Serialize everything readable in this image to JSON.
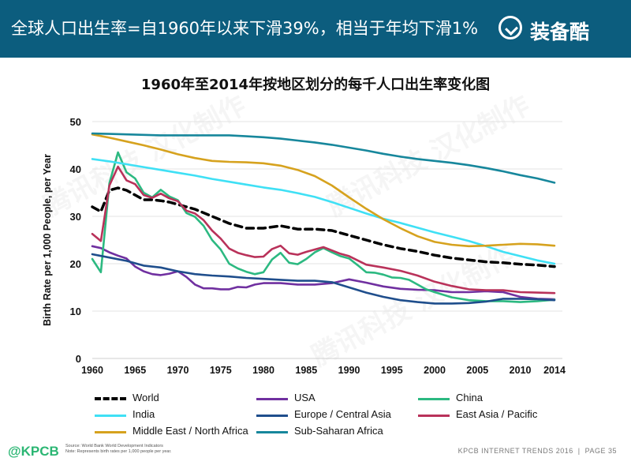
{
  "header": {
    "title": "全球人口出生率=自1960年以来下滑39%，相当于年均下滑1%",
    "brand": "装备酷"
  },
  "watermarks": [
    "腾讯科技 汉化制作",
    "腾讯科技 汉化制作",
    "腾讯科技 汉化制作"
  ],
  "footer": {
    "logo": "@KPCB",
    "source_line1": "Source: World Bank World Development Indicators",
    "source_line2": "Note: Represents birth rates per 1,000 people per year.",
    "report": "KPCB INTERNET TRENDS 2016",
    "separator": "|",
    "page": "PAGE 35"
  },
  "chart_data": {
    "type": "line",
    "title": "1960年至2014年按地区划分的每千人口出生率变化图",
    "xlabel": "",
    "ylabel": "Birth Rate per 1,000 People, per Year",
    "xlim": [
      1960,
      2014
    ],
    "ylim": [
      0,
      50
    ],
    "xticks": [
      "1960",
      "1965",
      "1970",
      "1975",
      "1980",
      "1985",
      "1990",
      "1995",
      "2000",
      "2005",
      "2010",
      "2014"
    ],
    "yticks": [
      "0",
      "10",
      "20",
      "30",
      "40",
      "50"
    ],
    "grid": true,
    "legend_position": "bottom",
    "series": [
      {
        "name": "World",
        "color": "#000000",
        "dash": true,
        "points": [
          [
            1960,
            32
          ],
          [
            1961,
            31
          ],
          [
            1962,
            35.5
          ],
          [
            1963,
            36
          ],
          [
            1964,
            35.5
          ],
          [
            1965,
            34.5
          ],
          [
            1966,
            33.5
          ],
          [
            1967,
            33.5
          ],
          [
            1968,
            33.3
          ],
          [
            1969,
            33
          ],
          [
            1970,
            32.5
          ],
          [
            1972,
            31.5
          ],
          [
            1974,
            30
          ],
          [
            1976,
            28.5
          ],
          [
            1978,
            27.5
          ],
          [
            1980,
            27.5
          ],
          [
            1982,
            28
          ],
          [
            1984,
            27.3
          ],
          [
            1986,
            27.3
          ],
          [
            1988,
            27
          ],
          [
            1990,
            26
          ],
          [
            1992,
            25
          ],
          [
            1994,
            24
          ],
          [
            1996,
            23.2
          ],
          [
            1998,
            22.6
          ],
          [
            2000,
            21.8
          ],
          [
            2002,
            21.2
          ],
          [
            2004,
            20.8
          ],
          [
            2006,
            20.4
          ],
          [
            2008,
            20.2
          ],
          [
            2010,
            19.9
          ],
          [
            2012,
            19.7
          ],
          [
            2014,
            19.4
          ]
        ]
      },
      {
        "name": "USA",
        "color": "#7030a0",
        "dash": false,
        "points": [
          [
            1960,
            23.7
          ],
          [
            1961,
            23.3
          ],
          [
            1962,
            22.4
          ],
          [
            1963,
            21.7
          ],
          [
            1964,
            21.1
          ],
          [
            1965,
            19.4
          ],
          [
            1966,
            18.4
          ],
          [
            1967,
            17.8
          ],
          [
            1968,
            17.6
          ],
          [
            1969,
            17.9
          ],
          [
            1970,
            18.4
          ],
          [
            1971,
            17.2
          ],
          [
            1972,
            15.6
          ],
          [
            1973,
            14.8
          ],
          [
            1974,
            14.8
          ],
          [
            1975,
            14.6
          ],
          [
            1976,
            14.6
          ],
          [
            1977,
            15.1
          ],
          [
            1978,
            15
          ],
          [
            1979,
            15.6
          ],
          [
            1980,
            15.9
          ],
          [
            1982,
            15.9
          ],
          [
            1984,
            15.6
          ],
          [
            1986,
            15.6
          ],
          [
            1988,
            15.9
          ],
          [
            1990,
            16.7
          ],
          [
            1992,
            16
          ],
          [
            1994,
            15.2
          ],
          [
            1996,
            14.7
          ],
          [
            1998,
            14.5
          ],
          [
            2000,
            14.4
          ],
          [
            2002,
            14
          ],
          [
            2004,
            14
          ],
          [
            2006,
            14.2
          ],
          [
            2008,
            14
          ],
          [
            2010,
            13
          ],
          [
            2012,
            12.6
          ],
          [
            2014,
            12.5
          ]
        ]
      },
      {
        "name": "China",
        "color": "#2cb981",
        "dash": false,
        "points": [
          [
            1960,
            21
          ],
          [
            1961,
            18.2
          ],
          [
            1962,
            37
          ],
          [
            1963,
            43.5
          ],
          [
            1964,
            39.3
          ],
          [
            1965,
            38
          ],
          [
            1966,
            35
          ],
          [
            1967,
            34
          ],
          [
            1968,
            35.6
          ],
          [
            1969,
            34.2
          ],
          [
            1970,
            33.4
          ],
          [
            1971,
            30.7
          ],
          [
            1972,
            29.9
          ],
          [
            1973,
            28
          ],
          [
            1974,
            25
          ],
          [
            1975,
            23
          ],
          [
            1976,
            20
          ],
          [
            1977,
            19
          ],
          [
            1978,
            18.3
          ],
          [
            1979,
            17.8
          ],
          [
            1980,
            18.2
          ],
          [
            1981,
            20.9
          ],
          [
            1982,
            22.3
          ],
          [
            1983,
            20.2
          ],
          [
            1984,
            19.9
          ],
          [
            1985,
            21
          ],
          [
            1986,
            22.4
          ],
          [
            1987,
            23.3
          ],
          [
            1988,
            22.4
          ],
          [
            1989,
            21.6
          ],
          [
            1990,
            21.1
          ],
          [
            1991,
            19.7
          ],
          [
            1992,
            18.2
          ],
          [
            1993,
            18.1
          ],
          [
            1994,
            17.7
          ],
          [
            1995,
            17.1
          ],
          [
            1996,
            17
          ],
          [
            1997,
            16.6
          ],
          [
            1998,
            15.6
          ],
          [
            1999,
            14.6
          ],
          [
            2000,
            14
          ],
          [
            2002,
            12.9
          ],
          [
            2004,
            12.3
          ],
          [
            2006,
            12.1
          ],
          [
            2008,
            12.1
          ],
          [
            2010,
            11.9
          ],
          [
            2012,
            12.1
          ],
          [
            2014,
            12.4
          ]
        ]
      },
      {
        "name": "India",
        "color": "#3fe0f5",
        "dash": false,
        "points": [
          [
            1960,
            42.1
          ],
          [
            1962,
            41.6
          ],
          [
            1964,
            41
          ],
          [
            1966,
            40.4
          ],
          [
            1968,
            39.8
          ],
          [
            1970,
            39.2
          ],
          [
            1972,
            38.6
          ],
          [
            1974,
            37.9
          ],
          [
            1976,
            37.3
          ],
          [
            1978,
            36.7
          ],
          [
            1980,
            36.1
          ],
          [
            1982,
            35.6
          ],
          [
            1984,
            34.9
          ],
          [
            1986,
            34.1
          ],
          [
            1988,
            33
          ],
          [
            1990,
            31.8
          ],
          [
            1992,
            30.6
          ],
          [
            1994,
            29.5
          ],
          [
            1996,
            28.6
          ],
          [
            1998,
            27.6
          ],
          [
            2000,
            26.6
          ],
          [
            2002,
            25.7
          ],
          [
            2004,
            24.8
          ],
          [
            2006,
            23.7
          ],
          [
            2008,
            22.5
          ],
          [
            2010,
            21.6
          ],
          [
            2012,
            20.7
          ],
          [
            2014,
            20
          ]
        ]
      },
      {
        "name": "Europe / Central Asia",
        "color": "#1f4e8c",
        "dash": false,
        "points": [
          [
            1960,
            22
          ],
          [
            1962,
            21.3
          ],
          [
            1964,
            20.6
          ],
          [
            1966,
            19.6
          ],
          [
            1968,
            19.2
          ],
          [
            1970,
            18.4
          ],
          [
            1972,
            17.8
          ],
          [
            1974,
            17.5
          ],
          [
            1976,
            17.3
          ],
          [
            1978,
            17
          ],
          [
            1980,
            16.8
          ],
          [
            1982,
            16.6
          ],
          [
            1984,
            16.4
          ],
          [
            1986,
            16.4
          ],
          [
            1988,
            16.1
          ],
          [
            1990,
            15
          ],
          [
            1992,
            13.9
          ],
          [
            1994,
            13
          ],
          [
            1996,
            12.3
          ],
          [
            1998,
            11.9
          ],
          [
            2000,
            11.6
          ],
          [
            2002,
            11.6
          ],
          [
            2004,
            11.7
          ],
          [
            2006,
            12
          ],
          [
            2008,
            12.6
          ],
          [
            2010,
            12.6
          ],
          [
            2012,
            12.5
          ],
          [
            2014,
            12.3
          ]
        ]
      },
      {
        "name": "East Asia / Pacific",
        "color": "#b9325a",
        "dash": false,
        "points": [
          [
            1960,
            26.3
          ],
          [
            1961,
            24.8
          ],
          [
            1962,
            36.5
          ],
          [
            1963,
            40.5
          ],
          [
            1964,
            37.6
          ],
          [
            1965,
            36.8
          ],
          [
            1966,
            34.5
          ],
          [
            1967,
            33.9
          ],
          [
            1968,
            34.8
          ],
          [
            1969,
            33.8
          ],
          [
            1970,
            33.2
          ],
          [
            1971,
            31.2
          ],
          [
            1972,
            30.6
          ],
          [
            1973,
            29.2
          ],
          [
            1974,
            27
          ],
          [
            1975,
            25.3
          ],
          [
            1976,
            23.2
          ],
          [
            1977,
            22.3
          ],
          [
            1978,
            21.8
          ],
          [
            1979,
            21.4
          ],
          [
            1980,
            21.5
          ],
          [
            1981,
            23.1
          ],
          [
            1982,
            23.8
          ],
          [
            1983,
            22.2
          ],
          [
            1984,
            21.9
          ],
          [
            1985,
            22.5
          ],
          [
            1986,
            23
          ],
          [
            1987,
            23.5
          ],
          [
            1988,
            22.8
          ],
          [
            1989,
            22.1
          ],
          [
            1990,
            21.6
          ],
          [
            1992,
            19.8
          ],
          [
            1994,
            19.2
          ],
          [
            1996,
            18.5
          ],
          [
            1998,
            17.5
          ],
          [
            2000,
            16.2
          ],
          [
            2002,
            15.3
          ],
          [
            2004,
            14.6
          ],
          [
            2006,
            14.4
          ],
          [
            2008,
            14.4
          ],
          [
            2010,
            14
          ],
          [
            2012,
            13.9
          ],
          [
            2014,
            13.8
          ]
        ]
      },
      {
        "name": "Middle East / North Africa",
        "color": "#d6a21e",
        "dash": false,
        "points": [
          [
            1960,
            47.3
          ],
          [
            1962,
            46.6
          ],
          [
            1964,
            45.8
          ],
          [
            1966,
            45
          ],
          [
            1968,
            44.1
          ],
          [
            1970,
            43.1
          ],
          [
            1972,
            42.3
          ],
          [
            1974,
            41.7
          ],
          [
            1976,
            41.5
          ],
          [
            1978,
            41.4
          ],
          [
            1980,
            41.2
          ],
          [
            1982,
            40.7
          ],
          [
            1984,
            39.8
          ],
          [
            1986,
            38.5
          ],
          [
            1988,
            36.5
          ],
          [
            1990,
            34
          ],
          [
            1992,
            31.6
          ],
          [
            1994,
            29.4
          ],
          [
            1996,
            27.5
          ],
          [
            1998,
            25.8
          ],
          [
            2000,
            24.6
          ],
          [
            2002,
            24
          ],
          [
            2004,
            23.7
          ],
          [
            2006,
            23.8
          ],
          [
            2008,
            24
          ],
          [
            2010,
            24.2
          ],
          [
            2012,
            24.1
          ],
          [
            2014,
            23.8
          ]
        ]
      },
      {
        "name": "Sub-Saharan Africa",
        "color": "#17879c",
        "dash": false,
        "points": [
          [
            1960,
            47.5
          ],
          [
            1962,
            47.4
          ],
          [
            1964,
            47.3
          ],
          [
            1966,
            47.2
          ],
          [
            1968,
            47.1
          ],
          [
            1970,
            47.1
          ],
          [
            1972,
            47.1
          ],
          [
            1974,
            47.1
          ],
          [
            1976,
            47.1
          ],
          [
            1978,
            46.9
          ],
          [
            1980,
            46.7
          ],
          [
            1982,
            46.4
          ],
          [
            1984,
            46
          ],
          [
            1986,
            45.6
          ],
          [
            1988,
            45.1
          ],
          [
            1990,
            44.5
          ],
          [
            1992,
            43.9
          ],
          [
            1994,
            43.2
          ],
          [
            1996,
            42.6
          ],
          [
            1998,
            42.1
          ],
          [
            2000,
            41.7
          ],
          [
            2002,
            41.3
          ],
          [
            2004,
            40.8
          ],
          [
            2006,
            40.2
          ],
          [
            2008,
            39.5
          ],
          [
            2010,
            38.7
          ],
          [
            2012,
            38
          ],
          [
            2014,
            37.1
          ]
        ]
      }
    ]
  }
}
